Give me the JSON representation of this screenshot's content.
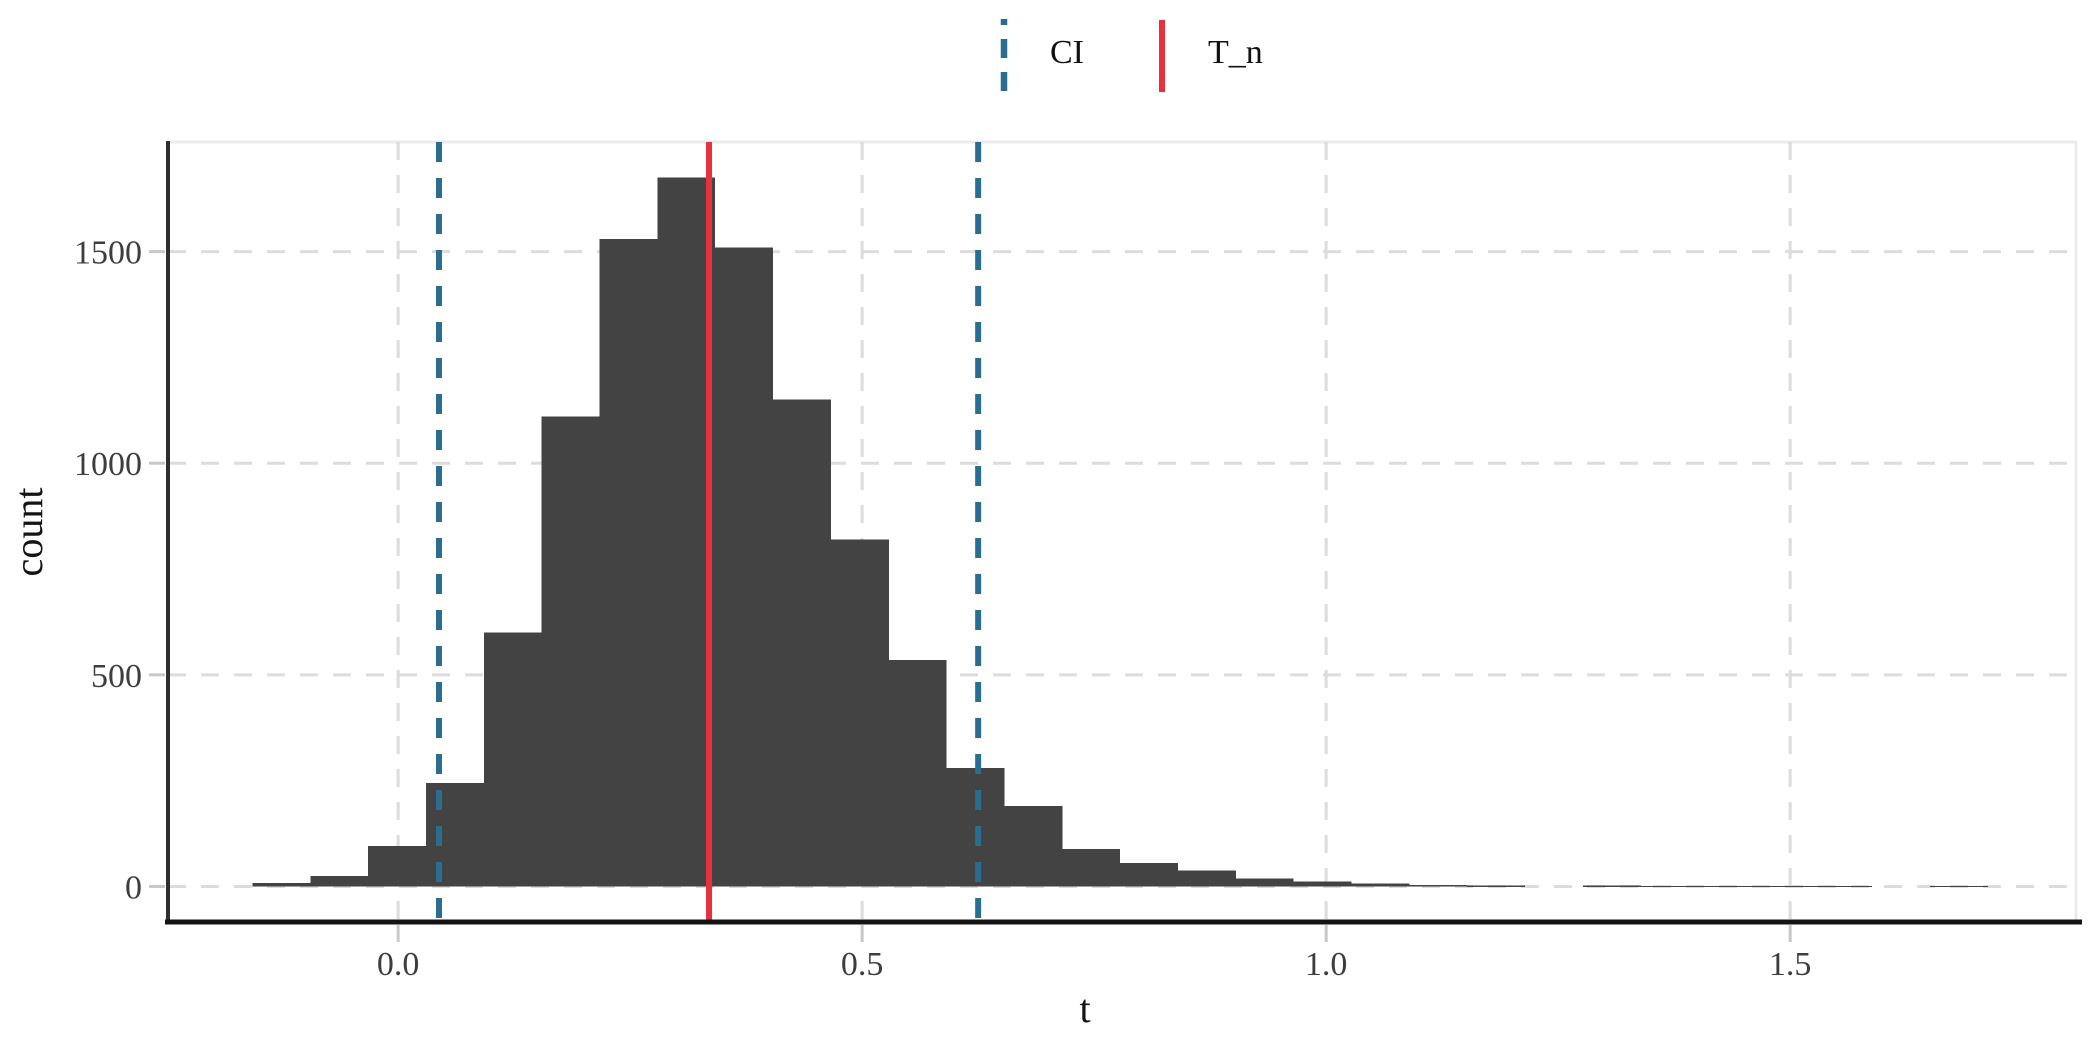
{
  "page": {
    "background": "#ffffff"
  },
  "legend": {
    "position": "top-center",
    "items": [
      {
        "label": "CI",
        "color": "#2B6D8E",
        "line_style": "dashed"
      },
      {
        "label": "T_n",
        "color": "#E8313E",
        "line_style": "solid"
      }
    ]
  },
  "axes": {
    "x": {
      "title": "t",
      "tick_labels": [
        "0.0",
        "0.5",
        "1.0",
        "1.5"
      ],
      "tick_values": [
        0,
        0.5,
        1.0,
        1.5
      ],
      "range": [
        -0.248,
        1.808
      ]
    },
    "y": {
      "title": "count",
      "tick_labels": [
        "0",
        "500",
        "1000",
        "1500"
      ],
      "tick_values": [
        0,
        500,
        1000,
        1500
      ],
      "range": [
        -84,
        1759
      ]
    }
  },
  "chart_data": {
    "type": "bar",
    "subtype": "histogram",
    "title": "",
    "xlabel": "t",
    "ylabel": "count",
    "legend_position": "top",
    "grid": {
      "color": "#DCDCDC",
      "dashed": true
    },
    "panel_border_color": "#EBEBEB",
    "axis_line_color_left": "#2E2E2E",
    "axis_line_color_bottom": "#141414",
    "tick_color": "#C8C8C8",
    "text_color": "#3D3D3D",
    "title_color": "#141414",
    "bar_color": "#434343",
    "xlim": [
      -0.248,
      1.808
    ],
    "ylim": [
      -84,
      1759
    ],
    "bins": {
      "start": -0.157,
      "width": 0.062333,
      "count": 30
    },
    "counts": [
      8,
      25,
      95,
      245,
      600,
      1110,
      1530,
      1675,
      1510,
      1150,
      820,
      535,
      280,
      190,
      88,
      55,
      38,
      19,
      12,
      7,
      3,
      2,
      0,
      2,
      1,
      1,
      1,
      1,
      0,
      1
    ],
    "vlines": [
      {
        "name": "ci-lower",
        "series": "CI",
        "x": 0.044,
        "color": "#2B6D8E",
        "style": "dashed"
      },
      {
        "name": "t-n",
        "series": "T_n",
        "x": 0.335,
        "color": "#E8313E",
        "style": "solid"
      },
      {
        "name": "ci-upper",
        "series": "CI",
        "x": 0.625,
        "color": "#2B6D8E",
        "style": "dashed"
      }
    ]
  }
}
